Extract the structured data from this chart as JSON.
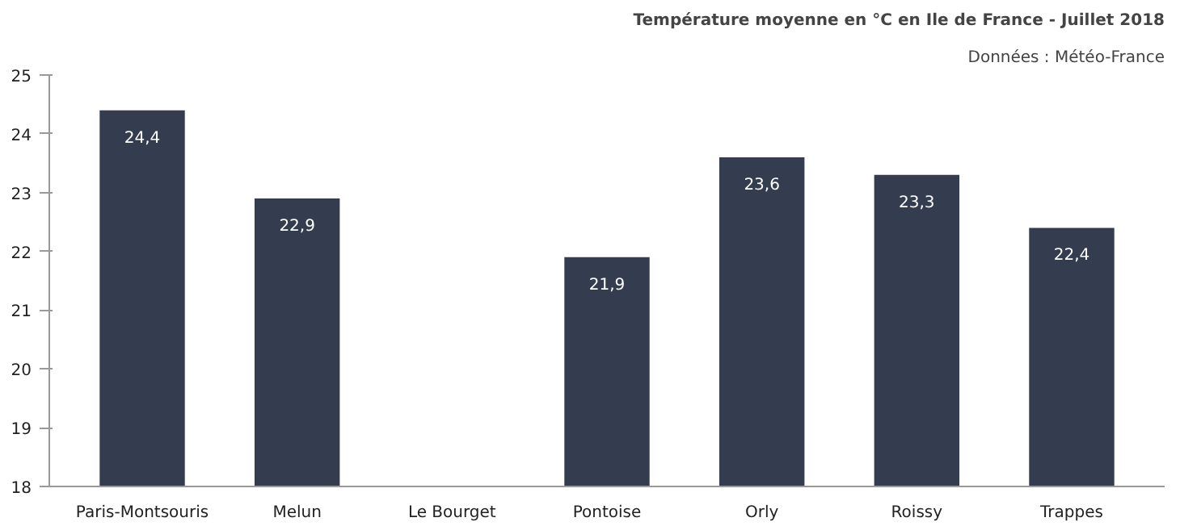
{
  "chart_data": {
    "type": "bar",
    "title": "Température moyenne en °C en Ile de France - Juillet 2018",
    "subtitle": "Données : Météo-France",
    "categories": [
      "Paris-Montsouris",
      "Melun",
      "Le Bourget",
      "Pontoise",
      "Orly",
      "Roissy",
      "Trappes"
    ],
    "values": [
      24.4,
      22.9,
      null,
      21.9,
      23.6,
      23.3,
      22.4
    ],
    "value_labels": [
      "24,4",
      "22,9",
      null,
      "21,9",
      "23,6",
      "23,3",
      "22,4"
    ],
    "color": "#333d4f",
    "ylim": [
      18,
      25
    ],
    "yticks": [
      18,
      19,
      20,
      21,
      22,
      23,
      24,
      25
    ],
    "grid": false
  }
}
